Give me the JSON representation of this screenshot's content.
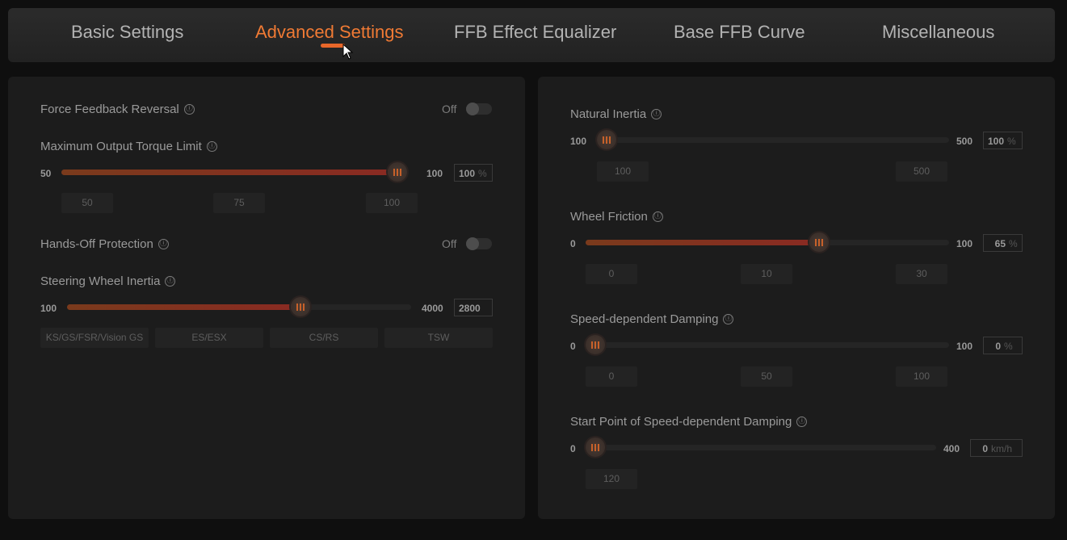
{
  "tabs": [
    {
      "label": "Basic Settings"
    },
    {
      "label": "Advanced Settings"
    },
    {
      "label": "FFB Effect Equalizer"
    },
    {
      "label": "Base FFB Curve"
    },
    {
      "label": "Miscellaneous"
    }
  ],
  "active_tab": "Advanced Settings",
  "left": {
    "ffb_reversal": {
      "label": "Force Feedback Reversal",
      "state": "Off"
    },
    "torque_limit": {
      "label": "Maximum Output Torque Limit",
      "min": "50",
      "max": "100",
      "value": "100",
      "unit": "%",
      "level": 1.0,
      "presets": [
        "50",
        "75",
        "100"
      ]
    },
    "hands_off": {
      "label": "Hands-Off Protection",
      "state": "Off"
    },
    "wheel_inertia": {
      "label": "Steering Wheel Inertia",
      "min": "100",
      "max": "4000",
      "value": "2800",
      "level": 0.69,
      "presets": [
        "KS/GS/FSR/Vision GS",
        "ES/ESX",
        "CS/RS",
        "TSW"
      ]
    }
  },
  "right": {
    "natural_inertia": {
      "label": "Natural Inertia",
      "min": "100",
      "max": "500",
      "value": "100",
      "unit": "%",
      "level": 0.0,
      "presets": [
        "100",
        "500"
      ]
    },
    "wheel_friction": {
      "label": "Wheel Friction",
      "min": "0",
      "max": "100",
      "value": "65",
      "unit": "%",
      "level": 0.65,
      "presets": [
        "0",
        "10",
        "30"
      ]
    },
    "speed_damping": {
      "label": "Speed-dependent Damping",
      "min": "0",
      "max": "100",
      "value": "0",
      "unit": "%",
      "level": 0.0,
      "presets": [
        "0",
        "50",
        "100"
      ]
    },
    "start_point": {
      "label": "Start Point of Speed-dependent Damping",
      "min": "0",
      "max": "400",
      "value": "0",
      "unit": "km/h",
      "level": 0.0,
      "presets": [
        "120"
      ]
    }
  },
  "info_glyph": "ⓘ",
  "accent_color": "#f07a34"
}
